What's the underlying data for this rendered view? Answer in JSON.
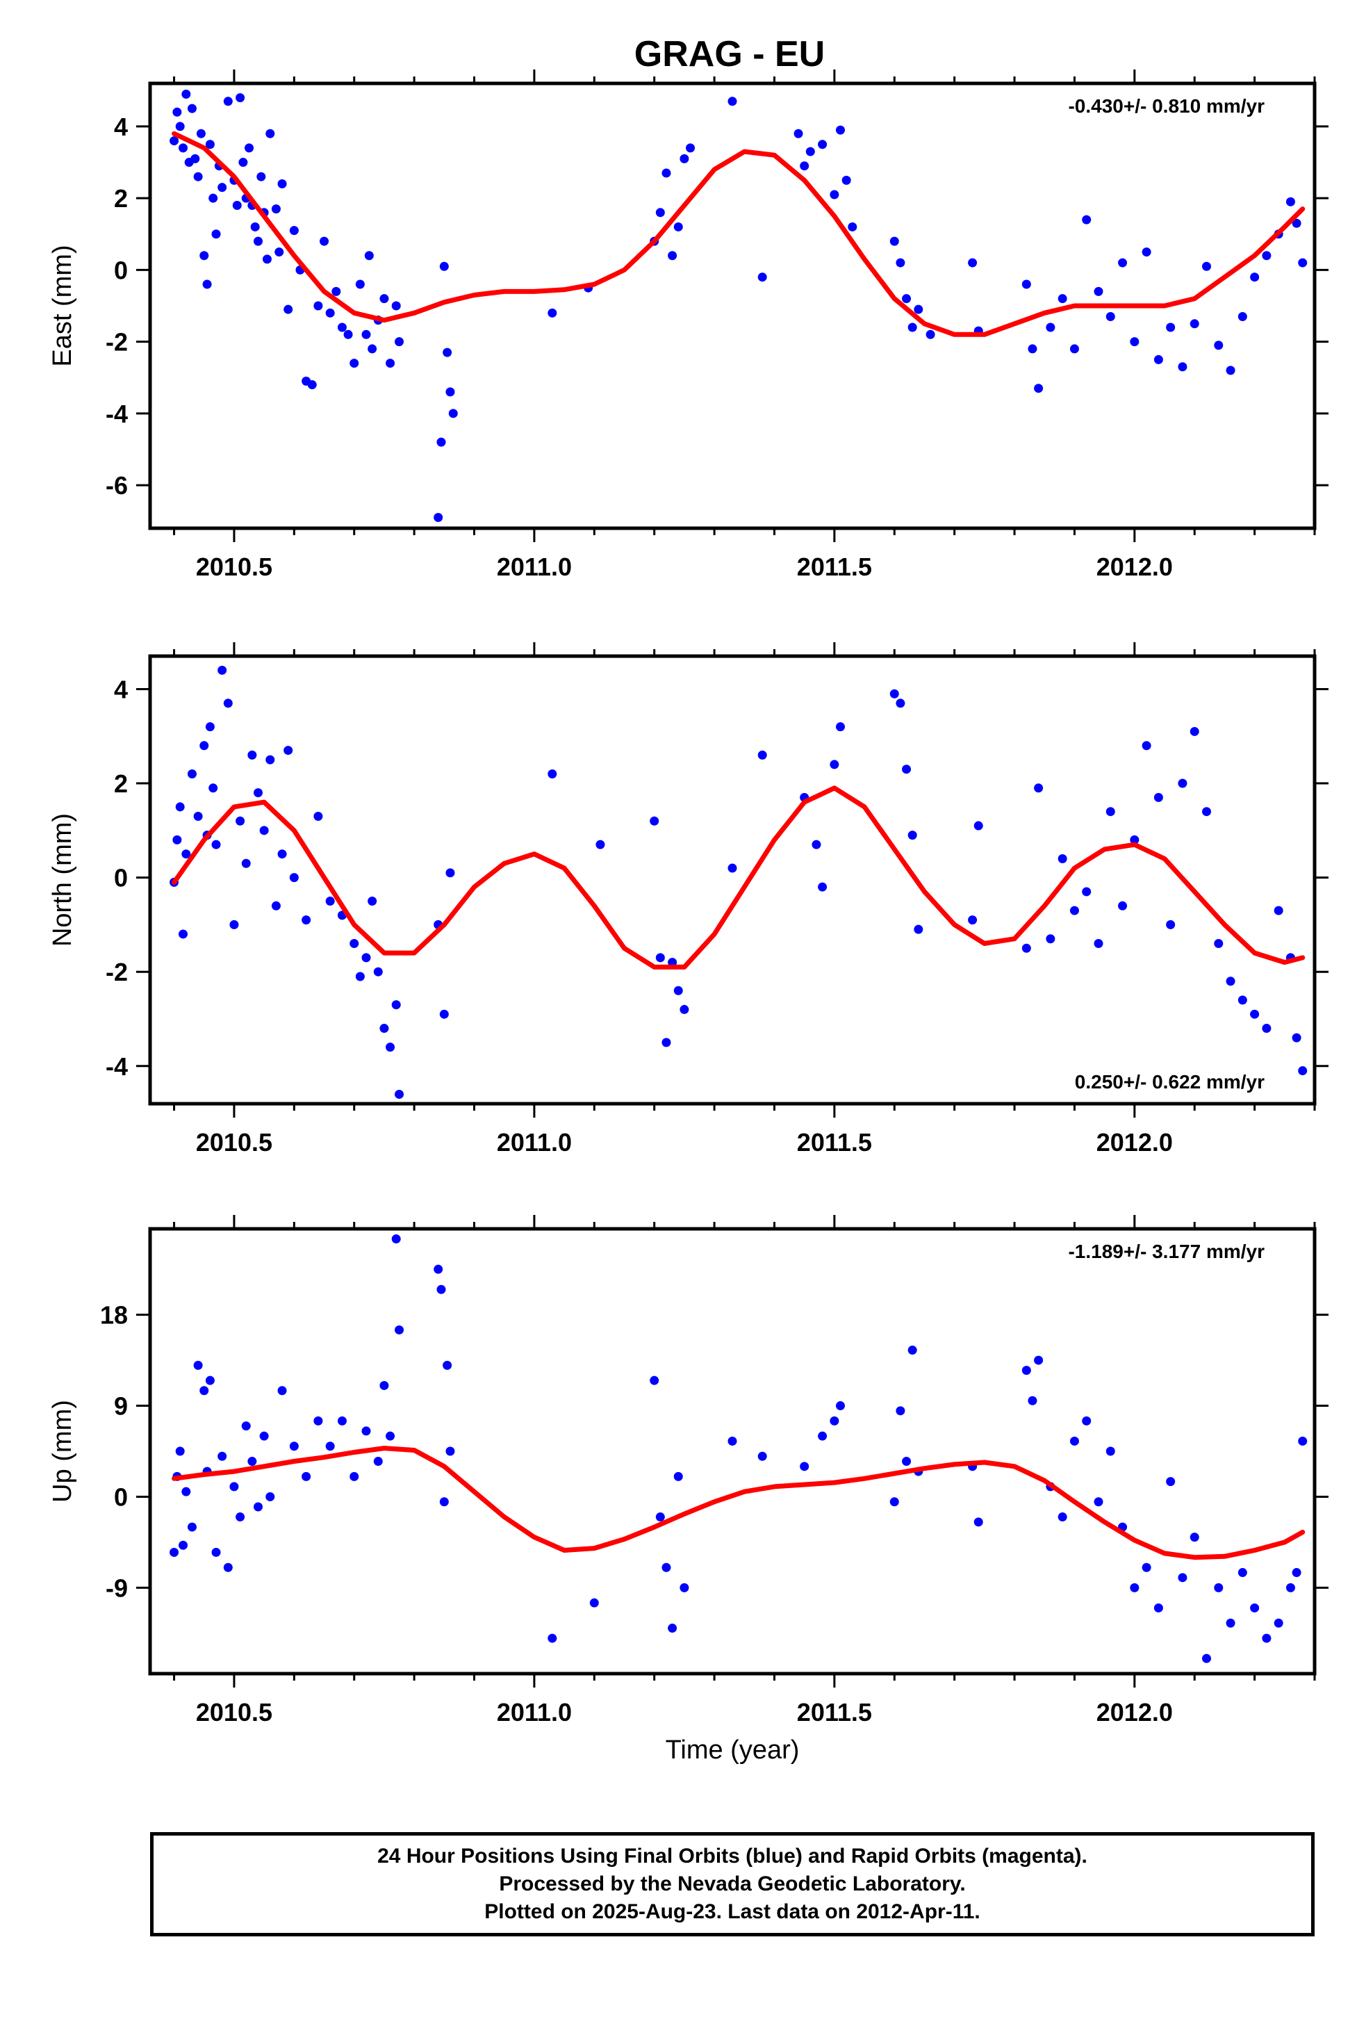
{
  "page": {
    "title": "GRAG - EU"
  },
  "footer": {
    "lines": [
      "24 Hour Positions Using Final Orbits (blue) and Rapid Orbits (magenta).",
      "Processed by the Nevada Geodetic Laboratory.",
      "Plotted on 2025-Aug-23. Last data on 2012-Apr-11."
    ]
  },
  "colors": {
    "points": "#0000ff",
    "fit": "#ff0000",
    "frame": "#000000"
  },
  "chart_data": [
    {
      "type": "scatter",
      "ylabel": "East (mm)",
      "xlabel": "",
      "xlim": [
        2010.36,
        2012.3
      ],
      "ylim": [
        -7.2,
        5.2
      ],
      "xticks": [
        "2010.5",
        "2011.0",
        "2011.5",
        "2012.0"
      ],
      "yticks": [
        "4",
        "2",
        "0",
        "-2",
        "-4",
        "-6"
      ],
      "rate_label": "-0.430+/- 0.810 mm/yr",
      "rate_position": "top-right",
      "fit": {
        "x": [
          2010.4,
          2010.45,
          2010.5,
          2010.55,
          2010.6,
          2010.65,
          2010.7,
          2010.75,
          2010.8,
          2010.85,
          2010.9,
          2010.95,
          2011.0,
          2011.05,
          2011.1,
          2011.15,
          2011.2,
          2011.25,
          2011.3,
          2011.35,
          2011.4,
          2011.45,
          2011.5,
          2011.55,
          2011.6,
          2011.65,
          2011.7,
          2011.75,
          2011.8,
          2011.85,
          2011.9,
          2011.95,
          2012.0,
          2012.05,
          2012.1,
          2012.15,
          2012.2,
          2012.25,
          2012.28
        ],
        "y": [
          3.8,
          3.4,
          2.6,
          1.5,
          0.4,
          -0.6,
          -1.2,
          -1.4,
          -1.2,
          -0.9,
          -0.7,
          -0.6,
          -0.6,
          -0.55,
          -0.4,
          0.0,
          0.8,
          1.8,
          2.8,
          3.3,
          3.2,
          2.5,
          1.5,
          0.3,
          -0.8,
          -1.5,
          -1.8,
          -1.8,
          -1.5,
          -1.2,
          -1.0,
          -1.0,
          -1.0,
          -1.0,
          -0.8,
          -0.2,
          0.4,
          1.2,
          1.7
        ]
      },
      "series": [
        {
          "x": [
            2010.4,
            2010.405,
            2010.41,
            2010.415,
            2010.42,
            2010.425,
            2010.43,
            2010.435,
            2010.44,
            2010.445,
            2010.45,
            2010.455,
            2010.46,
            2010.465,
            2010.47,
            2010.475,
            2010.48,
            2010.49,
            2010.5,
            2010.505,
            2010.51,
            2010.515,
            2010.52,
            2010.525,
            2010.53,
            2010.535,
            2010.54,
            2010.545,
            2010.55,
            2010.555,
            2010.56,
            2010.57,
            2010.575,
            2010.58,
            2010.59,
            2010.6,
            2010.61,
            2010.62,
            2010.63,
            2010.64,
            2010.65,
            2010.66,
            2010.67,
            2010.68,
            2010.69,
            2010.7,
            2010.71,
            2010.72,
            2010.725,
            2010.73,
            2010.74,
            2010.75,
            2010.76,
            2010.77,
            2010.775,
            2010.84,
            2010.845,
            2010.85,
            2010.855,
            2010.86,
            2010.865,
            2011.03,
            2011.09,
            2011.2,
            2011.21,
            2011.22,
            2011.23,
            2011.24,
            2011.25,
            2011.26,
            2011.33,
            2011.38,
            2011.44,
            2011.45,
            2011.46,
            2011.48,
            2011.5,
            2011.51,
            2011.52,
            2011.53,
            2011.6,
            2011.61,
            2011.62,
            2011.63,
            2011.64,
            2011.66,
            2011.73,
            2011.74,
            2011.82,
            2011.83,
            2011.84,
            2011.86,
            2011.88,
            2011.9,
            2011.92,
            2011.94,
            2011.96,
            2011.98,
            2012.0,
            2012.02,
            2012.04,
            2012.06,
            2012.08,
            2012.1,
            2012.12,
            2012.14,
            2012.16,
            2012.18,
            2012.2,
            2012.22,
            2012.24,
            2012.26,
            2012.27,
            2012.28
          ],
          "y": [
            3.6,
            4.4,
            4.0,
            3.4,
            4.9,
            3.0,
            4.5,
            3.1,
            2.6,
            3.8,
            0.4,
            -0.4,
            3.5,
            2.0,
            1.0,
            2.9,
            2.3,
            4.7,
            2.5,
            1.8,
            4.8,
            3.0,
            2.0,
            3.4,
            1.8,
            1.2,
            0.8,
            2.6,
            1.6,
            0.3,
            3.8,
            1.7,
            0.5,
            2.4,
            -1.1,
            1.1,
            0.0,
            -3.1,
            -3.2,
            -1.0,
            0.8,
            -1.2,
            -0.6,
            -1.6,
            -1.8,
            -2.6,
            -0.4,
            -1.8,
            0.4,
            -2.2,
            -1.4,
            -0.8,
            -2.6,
            -1.0,
            -2.0,
            -6.9,
            -4.8,
            0.1,
            -2.3,
            -3.4,
            -4.0,
            -1.2,
            -0.5,
            0.8,
            1.6,
            2.7,
            0.4,
            1.2,
            3.1,
            3.4,
            4.7,
            -0.2,
            3.8,
            2.9,
            3.3,
            3.5,
            2.1,
            3.9,
            2.5,
            1.2,
            0.8,
            0.2,
            -0.8,
            -1.6,
            -1.1,
            -1.8,
            0.2,
            -1.7,
            -0.4,
            -2.2,
            -3.3,
            -1.6,
            -0.8,
            -2.2,
            1.4,
            -0.6,
            -1.3,
            0.2,
            -2.0,
            0.5,
            -2.5,
            -1.6,
            -2.7,
            -1.5,
            0.1,
            -2.1,
            -2.8,
            -1.3,
            -0.2,
            0.4,
            1.0,
            1.9,
            1.3,
            0.2
          ],
          "color": "#0000ff"
        }
      ]
    },
    {
      "type": "scatter",
      "ylabel": "North (mm)",
      "xlabel": "",
      "xlim": [
        2010.36,
        2012.3
      ],
      "ylim": [
        -4.8,
        4.7
      ],
      "xticks": [
        "2010.5",
        "2011.0",
        "2011.5",
        "2012.0"
      ],
      "yticks": [
        "4",
        "2",
        "0",
        "-2",
        "-4"
      ],
      "rate_label": "0.250+/- 0.622 mm/yr",
      "rate_position": "bottom-right",
      "fit": {
        "x": [
          2010.4,
          2010.45,
          2010.5,
          2010.55,
          2010.6,
          2010.65,
          2010.7,
          2010.75,
          2010.8,
          2010.85,
          2010.9,
          2010.95,
          2011.0,
          2011.05,
          2011.1,
          2011.15,
          2011.2,
          2011.25,
          2011.3,
          2011.35,
          2011.4,
          2011.45,
          2011.5,
          2011.55,
          2011.6,
          2011.65,
          2011.7,
          2011.75,
          2011.8,
          2011.85,
          2011.9,
          2011.95,
          2012.0,
          2012.05,
          2012.1,
          2012.15,
          2012.2,
          2012.25,
          2012.28
        ],
        "y": [
          -0.1,
          0.8,
          1.5,
          1.6,
          1.0,
          0.0,
          -1.0,
          -1.6,
          -1.6,
          -1.0,
          -0.2,
          0.3,
          0.5,
          0.2,
          -0.6,
          -1.5,
          -1.9,
          -1.9,
          -1.2,
          -0.2,
          0.8,
          1.6,
          1.9,
          1.5,
          0.6,
          -0.3,
          -1.0,
          -1.4,
          -1.3,
          -0.6,
          0.2,
          0.6,
          0.7,
          0.4,
          -0.3,
          -1.0,
          -1.6,
          -1.8,
          -1.7
        ],
        "color": "#ff0000"
      },
      "series": [
        {
          "x": [
            2010.4,
            2010.405,
            2010.41,
            2010.415,
            2010.42,
            2010.43,
            2010.44,
            2010.45,
            2010.455,
            2010.46,
            2010.465,
            2010.47,
            2010.48,
            2010.49,
            2010.5,
            2010.51,
            2010.52,
            2010.53,
            2010.54,
            2010.55,
            2010.56,
            2010.57,
            2010.58,
            2010.59,
            2010.6,
            2010.62,
            2010.64,
            2010.66,
            2010.68,
            2010.7,
            2010.71,
            2010.72,
            2010.73,
            2010.74,
            2010.75,
            2010.76,
            2010.77,
            2010.775,
            2010.84,
            2010.85,
            2010.86,
            2011.03,
            2011.11,
            2011.2,
            2011.21,
            2011.22,
            2011.23,
            2011.24,
            2011.25,
            2011.33,
            2011.38,
            2011.45,
            2011.47,
            2011.48,
            2011.5,
            2011.51,
            2011.6,
            2011.61,
            2011.62,
            2011.63,
            2011.64,
            2011.73,
            2011.74,
            2011.82,
            2011.84,
            2011.86,
            2011.88,
            2011.9,
            2011.92,
            2011.94,
            2011.96,
            2011.98,
            2012.0,
            2012.02,
            2012.04,
            2012.06,
            2012.08,
            2012.1,
            2012.12,
            2012.14,
            2012.16,
            2012.18,
            2012.2,
            2012.22,
            2012.24,
            2012.26,
            2012.27,
            2012.28
          ],
          "y": [
            -0.1,
            0.8,
            1.5,
            -1.2,
            0.5,
            2.2,
            1.3,
            2.8,
            0.9,
            3.2,
            1.9,
            0.7,
            4.4,
            3.7,
            -1.0,
            1.2,
            0.3,
            2.6,
            1.8,
            1.0,
            2.5,
            -0.6,
            0.5,
            2.7,
            0.0,
            -0.9,
            1.3,
            -0.5,
            -0.8,
            -1.4,
            -2.1,
            -1.7,
            -0.5,
            -2.0,
            -3.2,
            -3.6,
            -2.7,
            -4.6,
            -1.0,
            -2.9,
            0.1,
            2.2,
            0.7,
            1.2,
            -1.7,
            -3.5,
            -1.8,
            -2.4,
            -2.8,
            0.2,
            2.6,
            1.7,
            0.7,
            -0.2,
            2.4,
            3.2,
            3.9,
            3.7,
            2.3,
            0.9,
            -1.1,
            -0.9,
            1.1,
            -1.5,
            1.9,
            -1.3,
            0.4,
            -0.7,
            -0.3,
            -1.4,
            1.4,
            -0.6,
            0.8,
            2.8,
            1.7,
            -1.0,
            2.0,
            3.1,
            1.4,
            -1.4,
            -2.2,
            -2.6,
            -2.9,
            -3.2,
            -0.7,
            -1.7,
            -3.4,
            -4.1
          ],
          "color": "#0000ff"
        }
      ]
    },
    {
      "type": "scatter",
      "ylabel": "Up (mm)",
      "xlabel": "Time (year)",
      "xlim": [
        2010.36,
        2012.3
      ],
      "ylim": [
        -17.5,
        26.5
      ],
      "xticks": [
        "2010.5",
        "2011.0",
        "2011.5",
        "2012.0"
      ],
      "yticks": [
        "18",
        "9",
        "0",
        "-9"
      ],
      "rate_label": "-1.189+/- 3.177 mm/yr",
      "rate_position": "top-right",
      "fit": {
        "x": [
          2010.4,
          2010.45,
          2010.5,
          2010.55,
          2010.6,
          2010.65,
          2010.7,
          2010.75,
          2010.8,
          2010.85,
          2010.9,
          2010.95,
          2011.0,
          2011.05,
          2011.1,
          2011.15,
          2011.2,
          2011.25,
          2011.3,
          2011.35,
          2011.4,
          2011.45,
          2011.5,
          2011.55,
          2011.6,
          2011.65,
          2011.7,
          2011.75,
          2011.8,
          2011.85,
          2011.9,
          2011.95,
          2012.0,
          2012.05,
          2012.1,
          2012.15,
          2012.2,
          2012.25,
          2012.28
        ],
        "y": [
          1.8,
          2.2,
          2.5,
          3.0,
          3.5,
          3.9,
          4.4,
          4.8,
          4.6,
          3.0,
          0.5,
          -2.0,
          -4.0,
          -5.3,
          -5.1,
          -4.2,
          -3.0,
          -1.7,
          -0.5,
          0.5,
          1.0,
          1.2,
          1.4,
          1.8,
          2.3,
          2.8,
          3.2,
          3.4,
          3.0,
          1.6,
          -0.5,
          -2.5,
          -4.3,
          -5.6,
          -6.0,
          -5.9,
          -5.3,
          -4.5,
          -3.5
        ]
      },
      "series": [
        {
          "x": [
            2010.4,
            2010.405,
            2010.41,
            2010.415,
            2010.42,
            2010.43,
            2010.44,
            2010.45,
            2010.455,
            2010.46,
            2010.47,
            2010.48,
            2010.49,
            2010.5,
            2010.51,
            2010.52,
            2010.53,
            2010.54,
            2010.55,
            2010.56,
            2010.58,
            2010.6,
            2010.62,
            2010.64,
            2010.66,
            2010.68,
            2010.7,
            2010.72,
            2010.74,
            2010.75,
            2010.76,
            2010.77,
            2010.775,
            2010.84,
            2010.845,
            2010.85,
            2010.855,
            2010.86,
            2011.03,
            2011.1,
            2011.2,
            2011.21,
            2011.22,
            2011.23,
            2011.24,
            2011.25,
            2011.33,
            2011.38,
            2011.45,
            2011.48,
            2011.5,
            2011.51,
            2011.6,
            2011.61,
            2011.62,
            2011.63,
            2011.64,
            2011.73,
            2011.74,
            2011.82,
            2011.83,
            2011.84,
            2011.86,
            2011.88,
            2011.9,
            2011.92,
            2011.94,
            2011.96,
            2011.98,
            2012.0,
            2012.02,
            2012.04,
            2012.06,
            2012.08,
            2012.1,
            2012.12,
            2012.14,
            2012.16,
            2012.18,
            2012.2,
            2012.22,
            2012.24,
            2012.26,
            2012.27,
            2012.28
          ],
          "y": [
            -5.5,
            2.0,
            4.5,
            -4.8,
            0.5,
            -3.0,
            13.0,
            10.5,
            2.5,
            11.5,
            -5.5,
            4.0,
            -7.0,
            1.0,
            -2.0,
            7.0,
            3.5,
            -1.0,
            6.0,
            0.0,
            10.5,
            5.0,
            2.0,
            7.5,
            5.0,
            7.5,
            2.0,
            6.5,
            3.5,
            11.0,
            6.0,
            25.5,
            16.5,
            22.5,
            20.5,
            -0.5,
            13.0,
            4.5,
            -14.0,
            -10.5,
            11.5,
            -2.0,
            -7.0,
            -13.0,
            2.0,
            -9.0,
            5.5,
            4.0,
            3.0,
            6.0,
            7.5,
            9.0,
            -0.5,
            8.5,
            3.5,
            14.5,
            2.5,
            3.0,
            -2.5,
            12.5,
            9.5,
            13.5,
            1.0,
            -2.0,
            5.5,
            7.5,
            -0.5,
            4.5,
            -3.0,
            -9.0,
            -7.0,
            -11.0,
            1.5,
            -8.0,
            -4.0,
            -16.0,
            -9.0,
            -12.5,
            -7.5,
            -11.0,
            -14.0,
            -12.5,
            -9.0,
            -7.5,
            5.5
          ],
          "color": "#0000ff"
        }
      ]
    }
  ]
}
